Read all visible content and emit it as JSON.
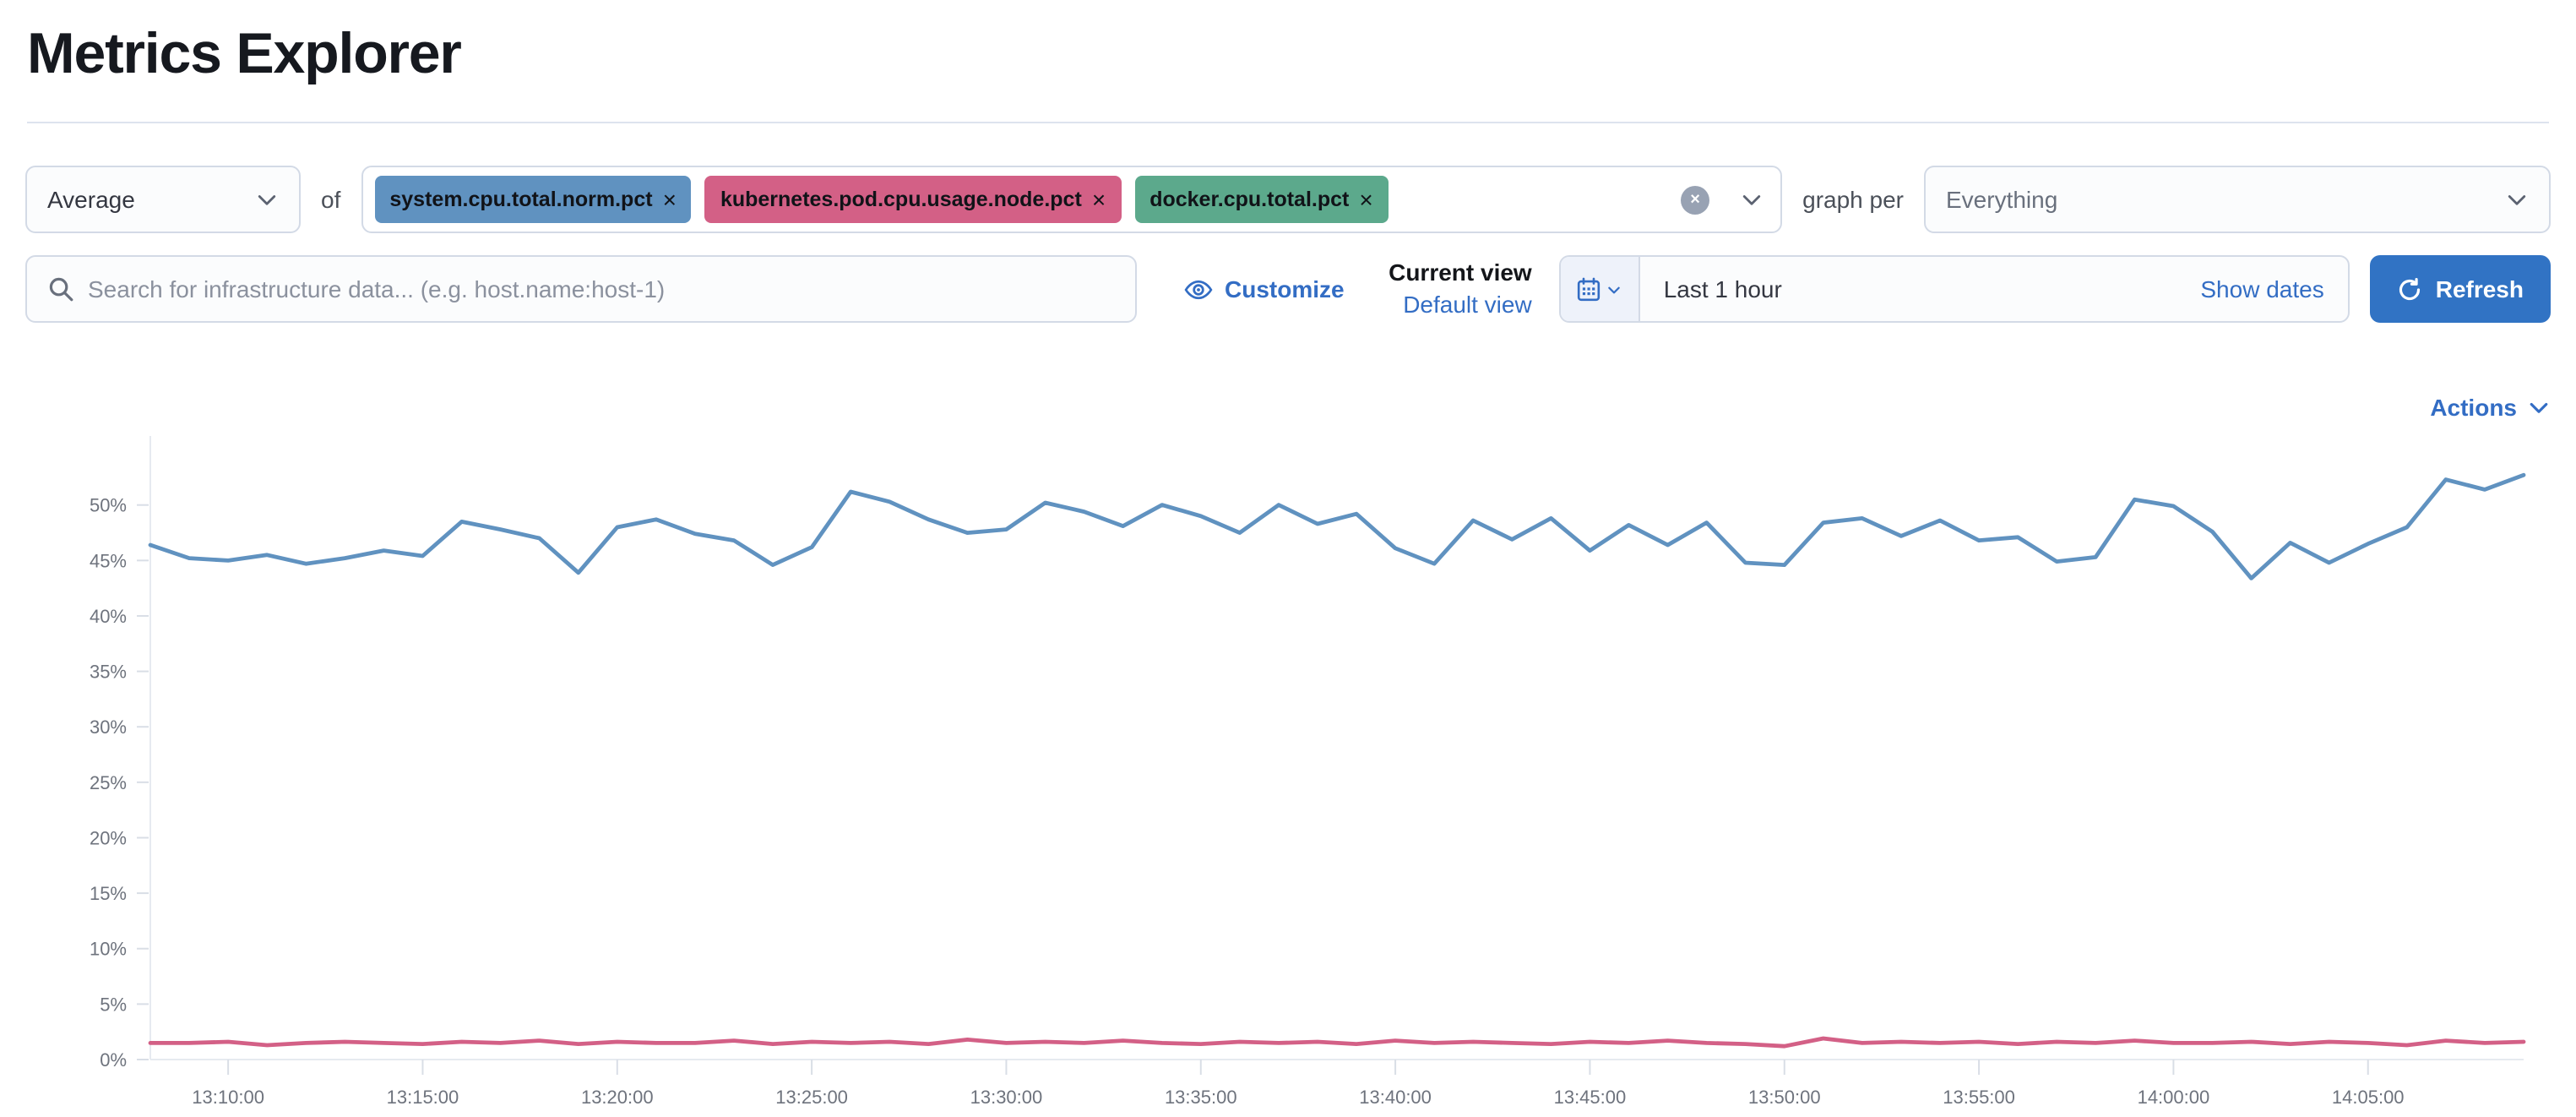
{
  "page": {
    "title": "Metrics Explorer"
  },
  "colors": {
    "primary_button": "#3173c4",
    "link": "#336dc4",
    "border": "#d3dae6"
  },
  "icons": {
    "remove_x": "×",
    "clear_x": "×"
  },
  "toolbar": {
    "aggregation": {
      "value": "Average"
    },
    "of_label": "of",
    "metrics": [
      {
        "label": "system.cpu.total.norm.pct",
        "color": "#6092C0"
      },
      {
        "label": "kubernetes.pod.cpu.usage.node.pct",
        "color": "#D36086"
      },
      {
        "label": "docker.cpu.total.pct",
        "color": "#5CA98C"
      }
    ],
    "graph_per_label": "graph per",
    "group_by": {
      "value": "Everything"
    }
  },
  "search": {
    "placeholder": "Search for infrastructure data... (e.g. host.name:host-1)"
  },
  "view_controls": {
    "customize_label": "Customize",
    "current_view_label": "Current view",
    "view_name": "Default view"
  },
  "time_picker": {
    "value": "Last 1 hour",
    "show_dates_label": "Show dates",
    "refresh_label": "Refresh"
  },
  "actions_label": "Actions",
  "chart_data": {
    "type": "line",
    "title": "",
    "xlabel": "",
    "ylabel": "",
    "x_start": "13:08:00",
    "x_step_minutes": 1,
    "ylim": [
      0,
      54.7
    ],
    "grid": "ticks-only",
    "legend": "none",
    "y_ticks": [
      "0%",
      "5%",
      "10%",
      "15%",
      "20%",
      "25%",
      "30%",
      "35%",
      "40%",
      "45%",
      "50%"
    ],
    "x_tick_labels": [
      "13:10:00",
      "13:15:00",
      "13:20:00",
      "13:25:00",
      "13:30:00",
      "13:35:00",
      "13:40:00",
      "13:45:00",
      "13:50:00",
      "13:55:00",
      "14:00:00",
      "14:05:00"
    ],
    "x_tick_indices": [
      2,
      7,
      12,
      17,
      22,
      27,
      32,
      37,
      42,
      47,
      52,
      57
    ],
    "series": [
      {
        "name": "system.cpu.total.norm.pct",
        "color": "#6092C0",
        "values": [
          46.4,
          45.2,
          45.0,
          45.5,
          44.7,
          45.2,
          45.9,
          45.4,
          48.5,
          47.8,
          47.0,
          43.9,
          48.0,
          48.7,
          47.4,
          46.8,
          44.6,
          46.2,
          51.2,
          50.3,
          48.7,
          47.5,
          47.8,
          50.2,
          49.4,
          48.1,
          50.0,
          49.0,
          47.5,
          50.0,
          48.3,
          49.2,
          46.1,
          44.7,
          48.6,
          46.9,
          48.8,
          45.9,
          48.2,
          46.4,
          48.4,
          44.8,
          44.6,
          48.4,
          48.8,
          47.2,
          48.6,
          46.8,
          47.1,
          44.9,
          45.3,
          50.5,
          49.9,
          47.6,
          43.4,
          46.6,
          44.8,
          46.5,
          48.0,
          52.3,
          51.4,
          52.7
        ]
      },
      {
        "name": "kubernetes.pod.cpu.usage.node.pct",
        "color": "#D36086",
        "values": [
          1.5,
          1.5,
          1.6,
          1.3,
          1.5,
          1.6,
          1.5,
          1.4,
          1.6,
          1.5,
          1.7,
          1.4,
          1.6,
          1.5,
          1.5,
          1.7,
          1.4,
          1.6,
          1.5,
          1.6,
          1.4,
          1.8,
          1.5,
          1.6,
          1.5,
          1.7,
          1.5,
          1.4,
          1.6,
          1.5,
          1.6,
          1.4,
          1.7,
          1.5,
          1.6,
          1.5,
          1.4,
          1.6,
          1.5,
          1.7,
          1.5,
          1.4,
          1.2,
          1.9,
          1.5,
          1.6,
          1.5,
          1.6,
          1.4,
          1.6,
          1.5,
          1.7,
          1.5,
          1.5,
          1.6,
          1.4,
          1.6,
          1.5,
          1.3,
          1.7,
          1.5,
          1.6
        ]
      }
    ]
  }
}
